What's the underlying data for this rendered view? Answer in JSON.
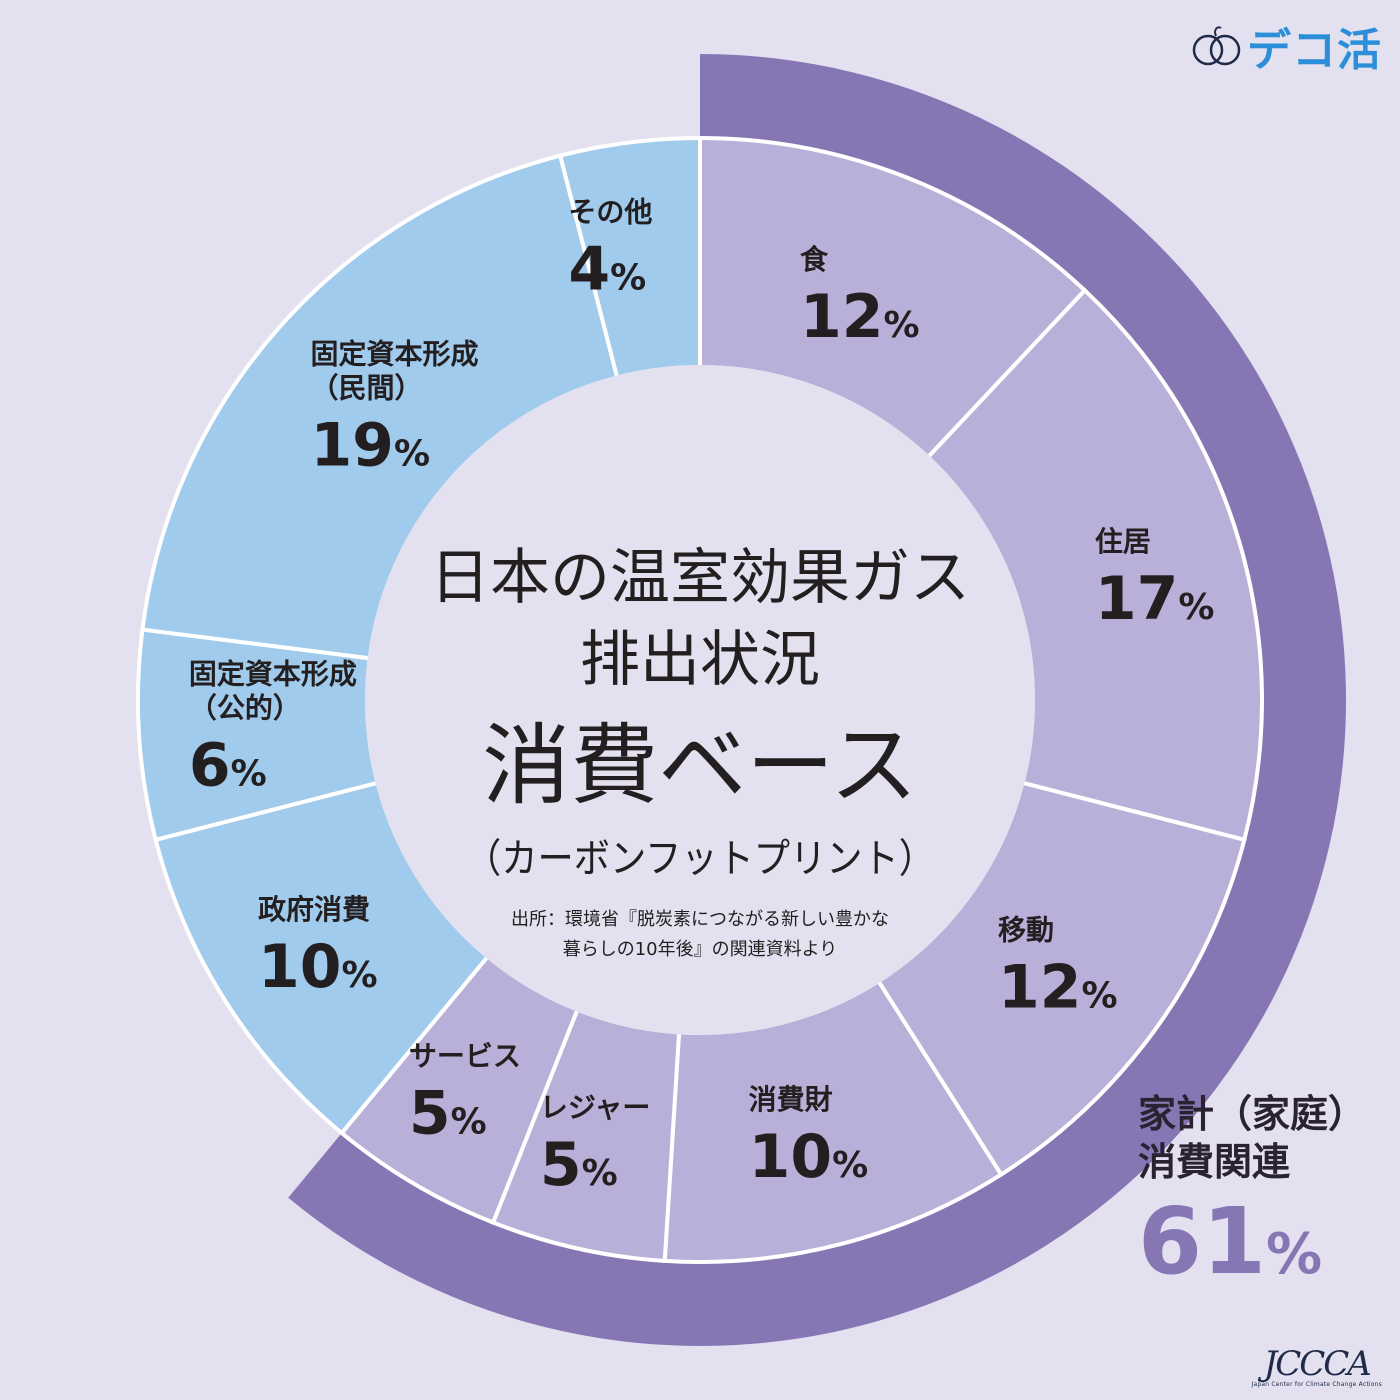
{
  "logo": {
    "text": "デコ活",
    "icon": "leaf-rings-icon"
  },
  "footer_logo": {
    "mark": "JCCCA",
    "subtitle": "Japan Center for Climate Change Actions"
  },
  "center": {
    "title_line1": "日本の温室効果ガス",
    "title_line2": "排出状況",
    "title_main": "消費ベース",
    "title_sub": "（カーボンフットプリント）",
    "source_line1": "出所：環境省『脱炭素につながる新しい豊かな",
    "source_line2": "暮らしの10年後』の関連資料より"
  },
  "household_group": {
    "label_line1": "家計（家庭）",
    "label_line2": "消費関連",
    "value": "61",
    "unit": "%"
  },
  "colors": {
    "background": "#e3e0ef",
    "household_segment": "#b8b0d8",
    "other_segment": "#a0cbec",
    "outer_ring": "#8677b4",
    "center_circle": "#e3e0ef",
    "text": "#231f20"
  },
  "chart_data": {
    "type": "pie",
    "style": "donut",
    "unit": "%",
    "segments": [
      {
        "label": "食",
        "value": 12,
        "group": "household"
      },
      {
        "label": "住居",
        "value": 17,
        "group": "household"
      },
      {
        "label": "移動",
        "value": 12,
        "group": "household"
      },
      {
        "label": "消費財",
        "value": 10,
        "group": "household"
      },
      {
        "label": "レジャー",
        "value": 5,
        "group": "household"
      },
      {
        "label": "サービス",
        "value": 5,
        "group": "household"
      },
      {
        "label": "政府消費",
        "value": 10,
        "group": "other"
      },
      {
        "label": "固定資本形成\n（公的）",
        "value": 6,
        "group": "other"
      },
      {
        "label": "固定資本形成\n（民間）",
        "value": 19,
        "group": "other"
      },
      {
        "label": "その他",
        "value": 4,
        "group": "other"
      }
    ],
    "outer_ring": {
      "label": "家計（家庭）消費関連",
      "value": 61,
      "covers_group": "household"
    }
  }
}
